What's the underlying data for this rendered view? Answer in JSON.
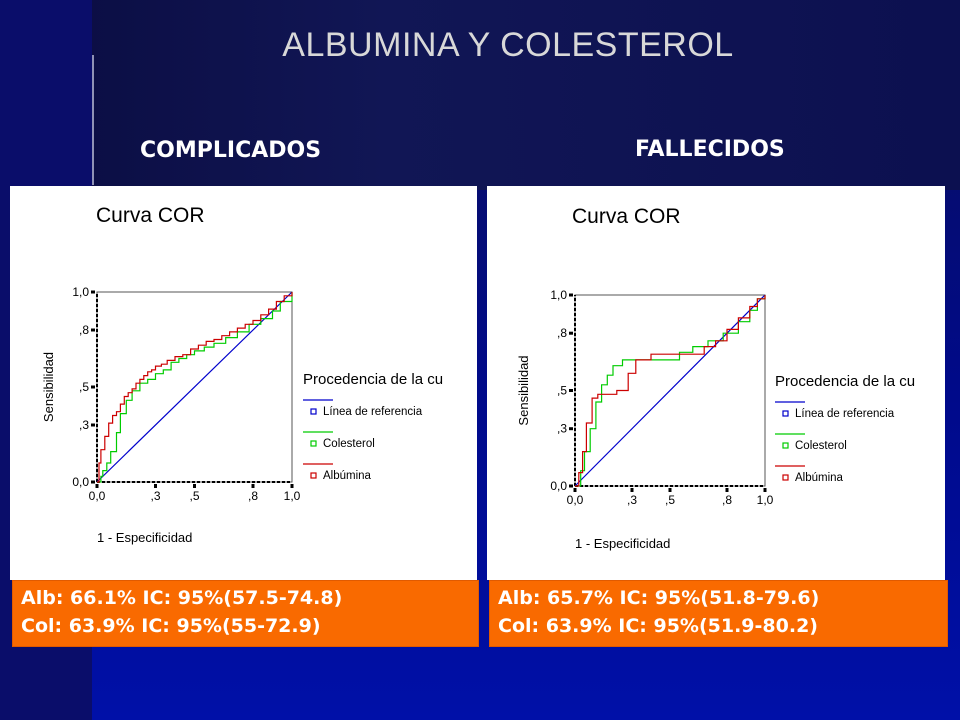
{
  "slide": {
    "title": "ALBUMINA Y COLESTEROL",
    "left_heading": "COMPLICADOS",
    "right_heading": "FALLECIDOS",
    "left_stats": [
      "Alb: 66.1%  IC: 95%(57.5-74.8)",
      "Col: 63.9%  IC: 95%(55-72.9)"
    ],
    "right_stats": [
      "Alb: 65.7%  IC: 95%(51.8-79.6)",
      "Col: 63.9%  IC: 95%(51.9-80.2)"
    ],
    "colors": {
      "reference": "#0000cc",
      "colesterol": "#00cc00",
      "albumina": "#cc0000",
      "stat_box": "#f96a00"
    }
  },
  "chart_data": [
    {
      "type": "line",
      "title": "Curva COR",
      "xlabel": "1 - Especificidad",
      "ylabel": "Sensibilidad",
      "xticks": [
        "0,0",
        ",3",
        ",5",
        ",8",
        "1,0"
      ],
      "yticks": [
        "0,0",
        ",3",
        ",5",
        ",8",
        "1,0"
      ],
      "xlim": [
        0,
        1
      ],
      "ylim": [
        0,
        1
      ],
      "legend_title": "Procedencia de la cu",
      "legend_position": "right",
      "series": [
        {
          "name": "Línea de referencia",
          "x": [
            0,
            1
          ],
          "y": [
            0,
            1
          ]
        },
        {
          "name": "Colesterol",
          "x": [
            0,
            0.02,
            0.03,
            0.05,
            0.07,
            0.1,
            0.12,
            0.15,
            0.18,
            0.22,
            0.26,
            0.3,
            0.34,
            0.38,
            0.42,
            0.46,
            0.5,
            0.55,
            0.6,
            0.66,
            0.72,
            0.78,
            0.84,
            0.9,
            0.94,
            1.0
          ],
          "y": [
            0,
            0.03,
            0.06,
            0.1,
            0.16,
            0.26,
            0.36,
            0.43,
            0.48,
            0.52,
            0.54,
            0.57,
            0.59,
            0.63,
            0.65,
            0.67,
            0.69,
            0.71,
            0.73,
            0.76,
            0.79,
            0.83,
            0.86,
            0.9,
            0.95,
            1.0
          ]
        },
        {
          "name": "Albúmina",
          "x": [
            0,
            0.01,
            0.02,
            0.04,
            0.06,
            0.08,
            0.1,
            0.12,
            0.14,
            0.16,
            0.18,
            0.2,
            0.22,
            0.24,
            0.26,
            0.28,
            0.3,
            0.33,
            0.36,
            0.4,
            0.44,
            0.48,
            0.52,
            0.56,
            0.6,
            0.64,
            0.68,
            0.72,
            0.76,
            0.8,
            0.84,
            0.88,
            0.92,
            0.96,
            1.0
          ],
          "y": [
            0,
            0.1,
            0.17,
            0.24,
            0.31,
            0.35,
            0.37,
            0.41,
            0.45,
            0.47,
            0.49,
            0.52,
            0.54,
            0.56,
            0.58,
            0.59,
            0.61,
            0.62,
            0.64,
            0.66,
            0.67,
            0.7,
            0.72,
            0.74,
            0.75,
            0.77,
            0.79,
            0.81,
            0.83,
            0.85,
            0.88,
            0.91,
            0.95,
            0.98,
            1.0
          ]
        }
      ]
    },
    {
      "type": "line",
      "title": "Curva COR",
      "xlabel": "1 - Especificidad",
      "ylabel": "Sensibilidad",
      "xticks": [
        "0,0",
        ",3",
        ",5",
        ",8",
        "1,0"
      ],
      "yticks": [
        "0,0",
        ",3",
        ",5",
        ",8",
        "1,0"
      ],
      "xlim": [
        0,
        1
      ],
      "ylim": [
        0,
        1
      ],
      "legend_title": "Procedencia de la cu",
      "legend_position": "right",
      "series": [
        {
          "name": "Línea de referencia",
          "x": [
            0,
            1
          ],
          "y": [
            0,
            1
          ]
        },
        {
          "name": "Colesterol",
          "x": [
            0,
            0.03,
            0.05,
            0.08,
            0.11,
            0.14,
            0.17,
            0.2,
            0.25,
            0.3,
            0.38,
            0.46,
            0.55,
            0.62,
            0.7,
            0.78,
            0.86,
            0.92,
            0.96,
            1.0
          ],
          "y": [
            0,
            0.08,
            0.18,
            0.3,
            0.44,
            0.53,
            0.58,
            0.63,
            0.66,
            0.66,
            0.66,
            0.66,
            0.7,
            0.73,
            0.76,
            0.8,
            0.86,
            0.92,
            0.98,
            1.0
          ]
        },
        {
          "name": "Albúmina",
          "x": [
            0,
            0.02,
            0.04,
            0.06,
            0.09,
            0.12,
            0.16,
            0.22,
            0.28,
            0.32,
            0.4,
            0.5,
            0.6,
            0.68,
            0.74,
            0.8,
            0.86,
            0.92,
            0.96,
            1.0
          ],
          "y": [
            0,
            0.07,
            0.18,
            0.33,
            0.46,
            0.48,
            0.48,
            0.5,
            0.59,
            0.66,
            0.69,
            0.69,
            0.69,
            0.73,
            0.76,
            0.82,
            0.88,
            0.94,
            0.98,
            1.0
          ]
        }
      ]
    }
  ]
}
